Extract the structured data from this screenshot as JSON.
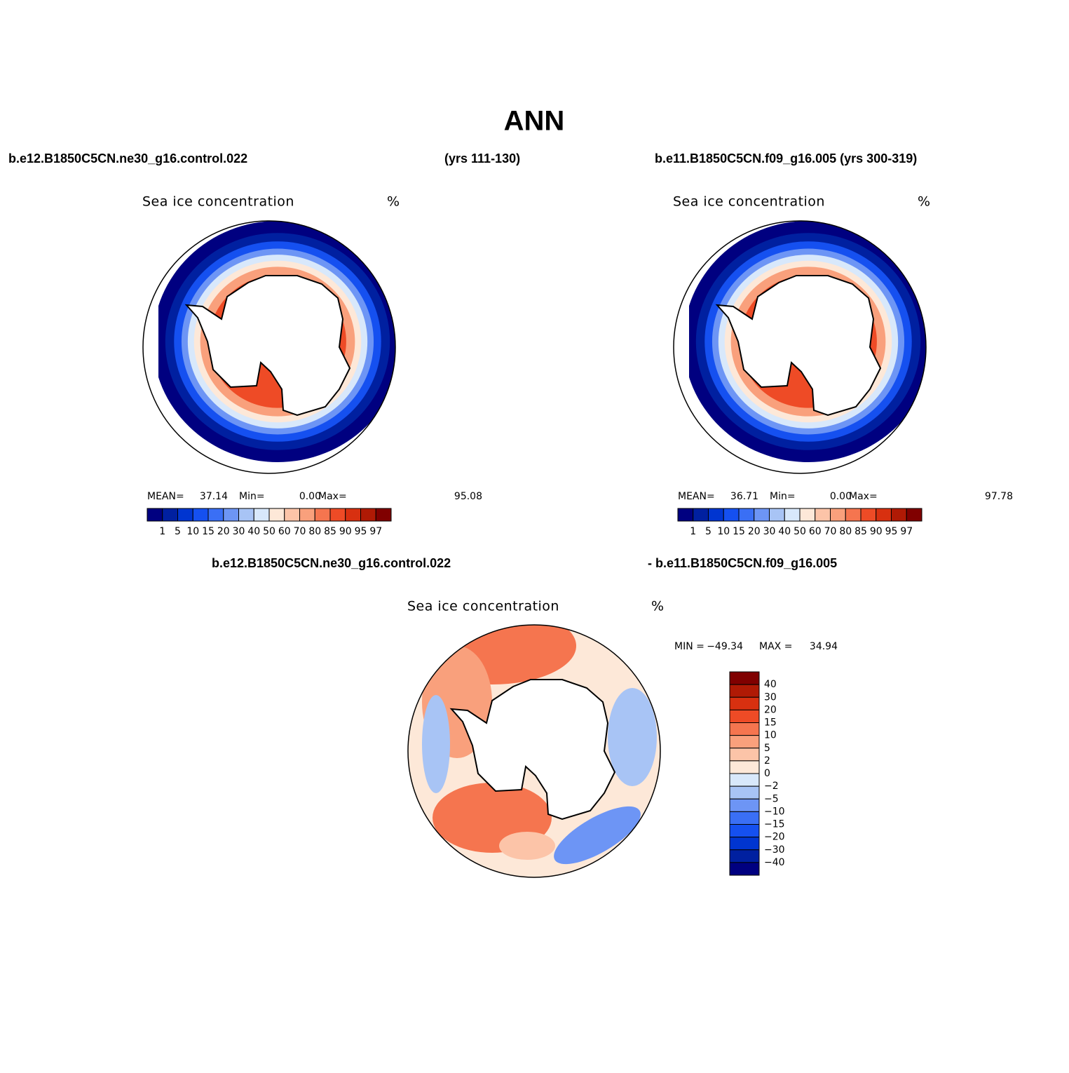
{
  "title": "ANN",
  "header": {
    "left": "b.e12.B1850C5CN.ne30_g16.control.022",
    "middle": "(yrs 111-130)",
    "right": "b.e11.B1850C5CN.f09_g16.005 (yrs 300-319)"
  },
  "panels": [
    {
      "title": "Sea ice concentration",
      "units": "%",
      "stats": [
        {
          "label": "MEAN=",
          "value": "37.14"
        },
        {
          "label": "Min=",
          "value": "0.00"
        },
        {
          "label": "Max=",
          "value": "95.08"
        }
      ],
      "colorbar": {
        "labels": [
          "1",
          "5",
          "10",
          "15",
          "20",
          "30",
          "40",
          "50",
          "60",
          "70",
          "80",
          "85",
          "90",
          "95",
          "97"
        ],
        "colors": [
          "#000080",
          "#0020a0",
          "#0035d0",
          "#1550f0",
          "#3a6ff5",
          "#6d95f5",
          "#a8c4f5",
          "#d8e8fb",
          "#fde8d8",
          "#fcc4a8",
          "#f9a07c",
          "#f5754f",
          "#ee4b26",
          "#d83010",
          "#b01a05",
          "#800000"
        ]
      }
    },
    {
      "title": "Sea ice concentration",
      "units": "%",
      "stats": [
        {
          "label": "MEAN=",
          "value": "36.71"
        },
        {
          "label": "Min=",
          "value": "0.00"
        },
        {
          "label": "Max=",
          "value": "97.78"
        }
      ],
      "colorbar": {
        "labels": [
          "1",
          "5",
          "10",
          "15",
          "20",
          "30",
          "40",
          "50",
          "60",
          "70",
          "80",
          "85",
          "90",
          "95",
          "97"
        ],
        "colors": [
          "#000080",
          "#0020a0",
          "#0035d0",
          "#1550f0",
          "#3a6ff5",
          "#6d95f5",
          "#a8c4f5",
          "#d8e8fb",
          "#fde8d8",
          "#fcc4a8",
          "#f9a07c",
          "#f5754f",
          "#ee4b26",
          "#d83010",
          "#b01a05",
          "#800000"
        ]
      }
    }
  ],
  "diff": {
    "case_a": "b.e12.B1850C5CN.ne30_g16.control.022",
    "case_b": "- b.e11.B1850C5CN.f09_g16.005",
    "title": "Sea ice concentration",
    "units": "%",
    "min_label": "MIN =",
    "min": "−49.34",
    "max_label": "MAX =",
    "max": "34.94",
    "colorbar": {
      "labels": [
        "40",
        "30",
        "20",
        "15",
        "10",
        "5",
        "2",
        "0",
        "−2",
        "−5",
        "−10",
        "−15",
        "−20",
        "−30",
        "−40"
      ],
      "colors": [
        "#800000",
        "#b01a05",
        "#d83010",
        "#ee4b26",
        "#f5754f",
        "#f9a07c",
        "#fcc4a8",
        "#fde8d8",
        "#d8e8fb",
        "#a8c4f5",
        "#6d95f5",
        "#3a6ff5",
        "#1550f0",
        "#0035d0",
        "#0020a0",
        "#000080"
      ]
    }
  }
}
